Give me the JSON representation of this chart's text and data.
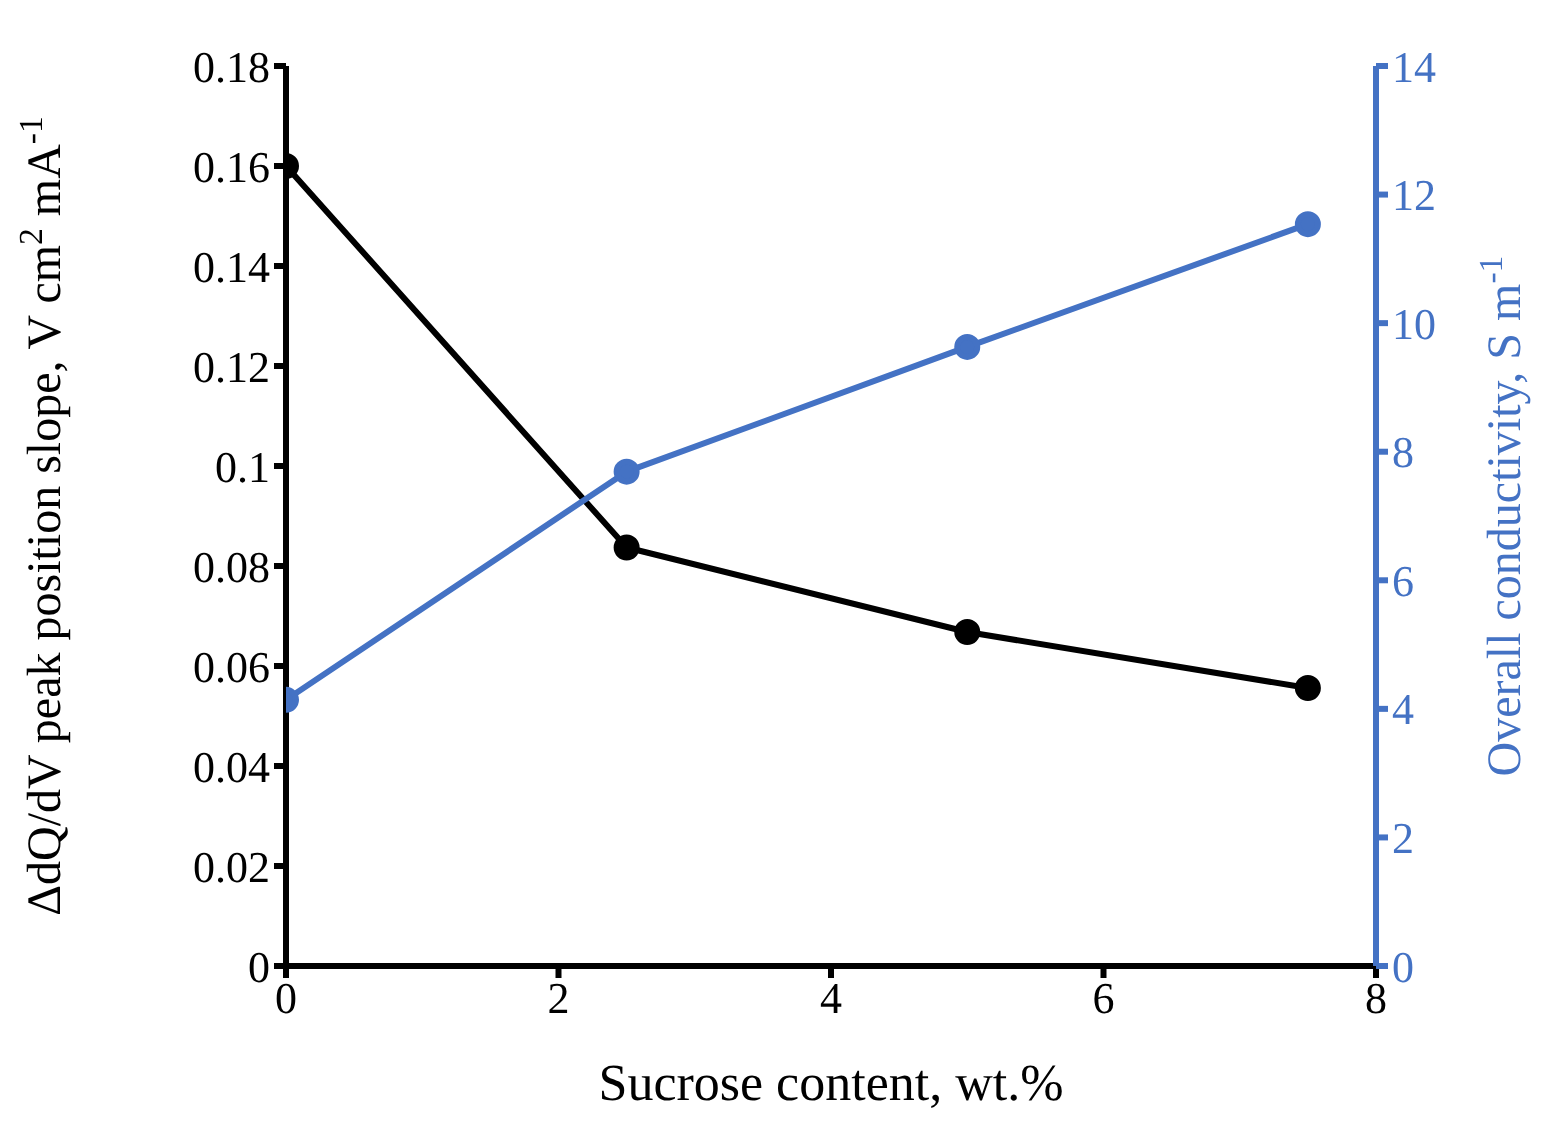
{
  "chart_data": {
    "type": "line",
    "xlabel": "Sucrose content, wt.%",
    "ylabel": "ΔdQ/dV peak position slope, V cm$^{2}$ mA$^{-1}$",
    "y2label": "Overall conductivity, S m$^{-1}$",
    "x": [
      0,
      2.5,
      5,
      7.5
    ],
    "series": [
      {
        "color": "#000000",
        "values": [
          0.16,
          0.0837,
          0.0668,
          0.0556
        ]
      },
      {
        "color": "#4472c4",
        "axis": "y2",
        "values": [
          4.14,
          7.69,
          9.63,
          11.54
        ]
      }
    ],
    "xlim": [
      0,
      8
    ],
    "xticks": [
      0,
      2,
      4,
      6,
      8
    ],
    "ylim": [
      0,
      0.18
    ],
    "yticks": [
      0,
      0.02,
      0.04,
      0.06,
      0.08,
      0.1,
      0.12,
      0.14,
      0.16,
      0.18
    ],
    "y2lim": [
      0,
      14
    ],
    "y2ticks": [
      0,
      2,
      4,
      6,
      8,
      10,
      12,
      14
    ],
    "grid": false,
    "legend": false,
    "marker": "circle",
    "line_style": "solid"
  }
}
